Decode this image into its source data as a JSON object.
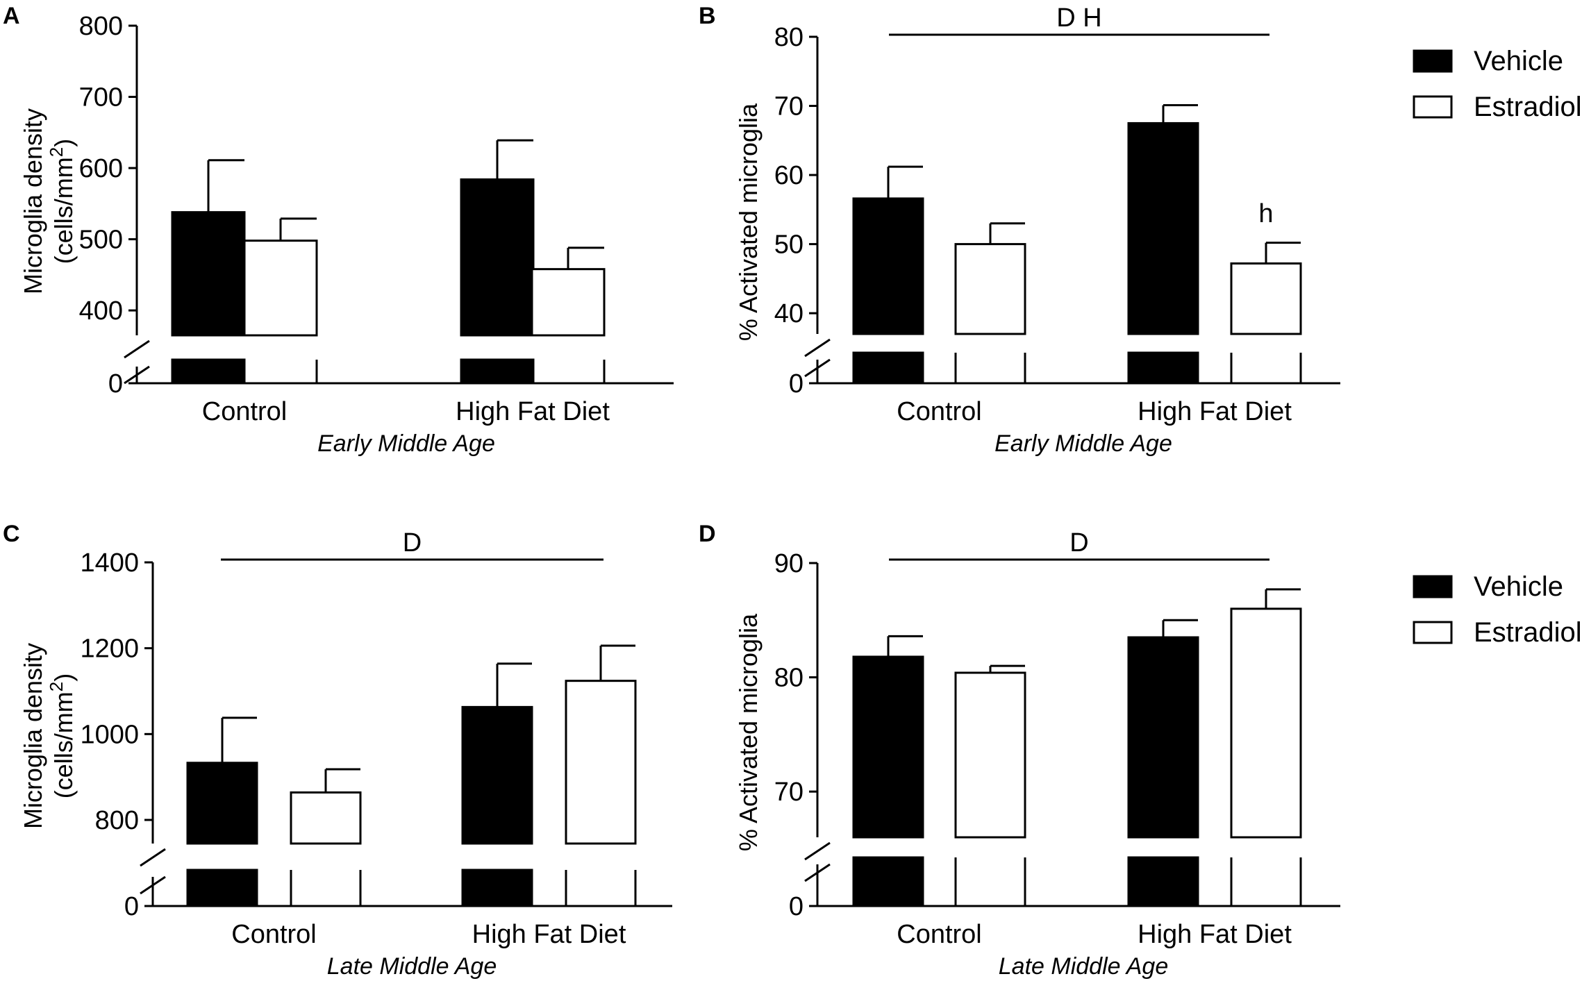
{
  "legend": {
    "top": [
      {
        "label": "Vehicle",
        "fill": "#000000"
      },
      {
        "label": "Estradiol",
        "fill": "#ffffff"
      }
    ],
    "bottom": [
      {
        "label": "Vehicle",
        "fill": "#000000"
      },
      {
        "label": "Estradiol",
        "fill": "#ffffff"
      }
    ]
  },
  "chart_data": [
    {
      "panel": "A",
      "type": "bar",
      "ylabel_lines": [
        "Microglia density",
        "(cells/mm",
        "2",
        ")"
      ],
      "xlabel": "Early Middle Age",
      "categories": [
        "Control",
        "High Fat Diet"
      ],
      "yticks": [
        400,
        500,
        600,
        700,
        800
      ],
      "ytick_labels": [
        "400",
        "500",
        "600",
        "700",
        "800"
      ],
      "zero_label": "0",
      "ylim": [
        365,
        800
      ],
      "axis_break": true,
      "series": [
        {
          "name": "Vehicle",
          "values": [
            538,
            584
          ],
          "err": [
            73,
            55
          ]
        },
        {
          "name": "Estradiol",
          "values": [
            498,
            458
          ],
          "err": [
            31,
            30
          ]
        }
      ],
      "significance": null
    },
    {
      "panel": "B",
      "type": "bar",
      "ylabel_lines": [
        "% Activated microglia"
      ],
      "xlabel": "Early Middle Age",
      "categories": [
        "Control",
        "High Fat Diet"
      ],
      "yticks": [
        40,
        50,
        60,
        70,
        80
      ],
      "ytick_labels": [
        "40",
        "50",
        "60",
        "70",
        "80"
      ],
      "zero_label": "0",
      "ylim": [
        37,
        80
      ],
      "axis_break": true,
      "series": [
        {
          "name": "Vehicle",
          "values": [
            56.6,
            67.5
          ],
          "err": [
            4.6,
            2.6
          ]
        },
        {
          "name": "Estradiol",
          "values": [
            50.0,
            47.2
          ],
          "err": [
            3.0,
            3.0
          ]
        }
      ],
      "significance": "D H",
      "bar_annotations": [
        {
          "series": "Estradiol",
          "category": "High Fat Diet",
          "text": "h"
        }
      ]
    },
    {
      "panel": "C",
      "type": "bar",
      "ylabel_lines": [
        "Microglia density",
        "(cells/mm",
        "2",
        ")"
      ],
      "xlabel": "Late Middle Age",
      "categories": [
        "Control",
        "High Fat Diet"
      ],
      "yticks": [
        800,
        1000,
        1200,
        1400
      ],
      "ytick_labels": [
        "800",
        "1000",
        "1200",
        "1400"
      ],
      "zero_label": "0",
      "ylim": [
        745,
        1400
      ],
      "axis_break": true,
      "series": [
        {
          "name": "Vehicle",
          "values": [
            933,
            1063
          ],
          "err": [
            105,
            101
          ]
        },
        {
          "name": "Estradiol",
          "values": [
            864,
            1124
          ],
          "err": [
            54,
            82
          ]
        }
      ],
      "significance": "D"
    },
    {
      "panel": "D",
      "type": "bar",
      "ylabel_lines": [
        "% Activated microglia"
      ],
      "xlabel": "Late Middle Age",
      "categories": [
        "Control",
        "High Fat Diet"
      ],
      "yticks": [
        70,
        80,
        90
      ],
      "ytick_labels": [
        "70",
        "80",
        "90"
      ],
      "zero_label": "0",
      "ylim": [
        66,
        90
      ],
      "axis_break": true,
      "series": [
        {
          "name": "Vehicle",
          "values": [
            81.8,
            83.5
          ],
          "err": [
            1.8,
            1.5
          ]
        },
        {
          "name": "Estradiol",
          "values": [
            80.4,
            86.0
          ],
          "err": [
            0.6,
            1.7
          ]
        }
      ],
      "significance": "D"
    }
  ]
}
